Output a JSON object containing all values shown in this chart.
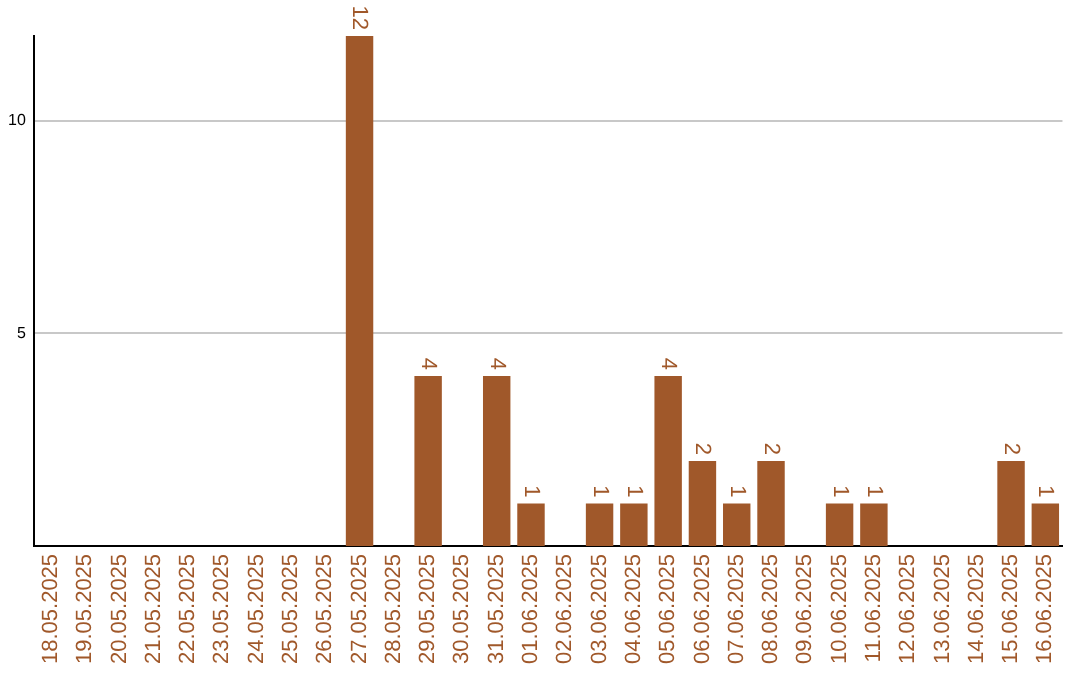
{
  "chart_data": {
    "type": "bar",
    "categories": [
      "18.05.2025",
      "19.05.2025",
      "20.05.2025",
      "21.05.2025",
      "22.05.2025",
      "23.05.2025",
      "24.05.2025",
      "25.05.2025",
      "26.05.2025",
      "27.05.2025",
      "28.05.2025",
      "29.05.2025",
      "30.05.2025",
      "31.05.2025",
      "01.06.2025",
      "02.06.2025",
      "03.06.2025",
      "04.06.2025",
      "05.06.2025",
      "06.06.2025",
      "07.06.2025",
      "08.06.2025",
      "09.06.2025",
      "10.06.2025",
      "11.06.2025",
      "12.06.2025",
      "13.06.2025",
      "14.06.2025",
      "15.06.2025",
      "16.06.2025"
    ],
    "values": [
      0,
      0,
      0,
      0,
      0,
      0,
      0,
      0,
      0,
      12,
      0,
      4,
      0,
      4,
      1,
      0,
      1,
      1,
      4,
      2,
      1,
      2,
      0,
      1,
      1,
      0,
      0,
      0,
      2,
      1
    ],
    "value_labels": [
      null,
      null,
      null,
      null,
      null,
      null,
      null,
      null,
      null,
      "12",
      null,
      "4",
      null,
      "4",
      "1",
      null,
      "1",
      "1",
      "4",
      "2",
      "1",
      "2",
      null,
      "1",
      "1",
      null,
      null,
      null,
      "2",
      "1"
    ],
    "color": "#a0582a",
    "ylim": [
      0,
      12
    ],
    "yticks": [
      5,
      10
    ],
    "grid": "y",
    "legend": false
  }
}
